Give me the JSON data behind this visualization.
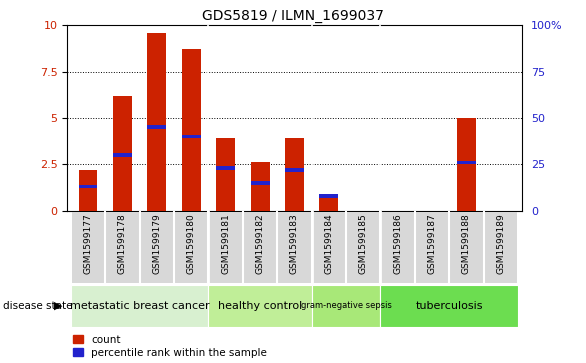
{
  "title": "GDS5819 / ILMN_1699037",
  "samples": [
    "GSM1599177",
    "GSM1599178",
    "GSM1599179",
    "GSM1599180",
    "GSM1599181",
    "GSM1599182",
    "GSM1599183",
    "GSM1599184",
    "GSM1599185",
    "GSM1599186",
    "GSM1599187",
    "GSM1599188",
    "GSM1599189"
  ],
  "count_values": [
    2.2,
    6.2,
    9.6,
    8.7,
    3.9,
    2.6,
    3.9,
    0.9,
    0.0,
    0.0,
    0.0,
    5.0,
    0.0
  ],
  "percentile_values": [
    13,
    30,
    45,
    40,
    23,
    15,
    22,
    8,
    0,
    0,
    0,
    26,
    0
  ],
  "bar_color": "#cc2200",
  "percentile_color": "#2222cc",
  "ylim": [
    0,
    10
  ],
  "yticks": [
    0,
    2.5,
    5.0,
    7.5,
    10
  ],
  "ytick_labels": [
    "0",
    "2.5",
    "5",
    "7.5",
    "10"
  ],
  "right_yticks": [
    0,
    25,
    50,
    75,
    100
  ],
  "right_ytick_labels": [
    "0",
    "25",
    "50",
    "75",
    "100%"
  ],
  "groups": [
    {
      "label": "metastatic breast cancer",
      "start": 0,
      "end": 3,
      "color": "#d8f0d0"
    },
    {
      "label": "healthy control",
      "start": 4,
      "end": 6,
      "color": "#c0ee98"
    },
    {
      "label": "gram-negative sepsis",
      "start": 7,
      "end": 8,
      "color": "#a8e878"
    },
    {
      "label": "tuberculosis",
      "start": 9,
      "end": 12,
      "color": "#6cdd50"
    }
  ],
  "disease_state_label": "disease state",
  "legend_count": "count",
  "legend_percentile": "percentile rank within the sample",
  "bar_width": 0.55,
  "bg_color": "#d8d8d8"
}
